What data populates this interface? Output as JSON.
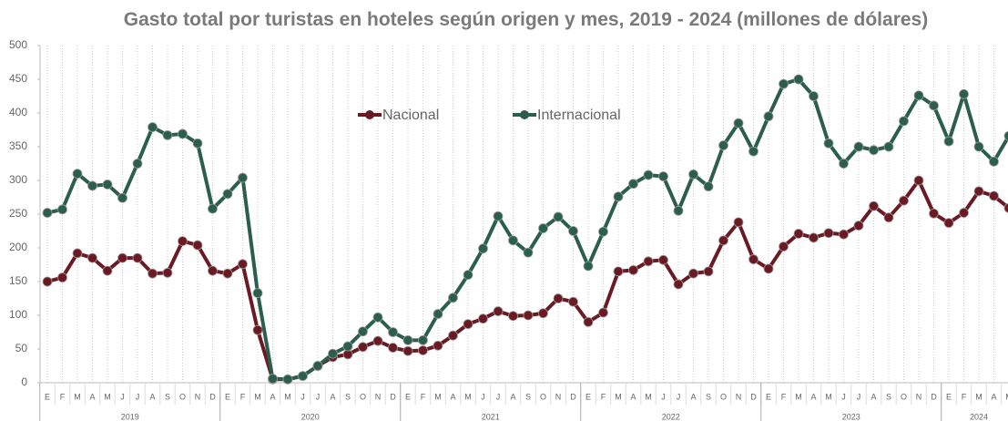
{
  "chart_data": {
    "type": "line",
    "title": "Gasto total por turistas en hoteles según origen y mes, 2019 - 2024 (millones de dólares)",
    "categories": [
      "E",
      "F",
      "M",
      "A",
      "M",
      "J",
      "J",
      "A",
      "S",
      "O",
      "N",
      "D",
      "E",
      "F",
      "M",
      "A",
      "M",
      "J",
      "J",
      "A",
      "S",
      "O",
      "N",
      "D",
      "E",
      "F",
      "M",
      "A",
      "M",
      "J",
      "J",
      "A",
      "S",
      "O",
      "N",
      "D",
      "E",
      "F",
      "M",
      "A",
      "M",
      "J",
      "J",
      "A",
      "S",
      "O",
      "N",
      "D",
      "E",
      "F",
      "M",
      "A",
      "M",
      "J",
      "J",
      "A",
      "S",
      "O",
      "N",
      "D",
      "E",
      "F",
      "M",
      "A",
      "M"
    ],
    "years": [
      "2019",
      "2020",
      "2021",
      "2022",
      "2023",
      "2024"
    ],
    "series": [
      {
        "name": "Nacional",
        "color": "#6b1a24",
        "values": [
          150,
          156,
          192,
          185,
          166,
          185,
          185,
          162,
          163,
          210,
          204,
          166,
          162,
          176,
          78,
          5,
          5,
          10,
          25,
          38,
          42,
          53,
          62,
          52,
          47,
          48,
          55,
          70,
          87,
          95,
          106,
          99,
          100,
          103,
          125,
          120,
          90,
          104,
          165,
          167,
          180,
          182,
          146,
          162,
          165,
          211,
          238,
          183,
          169,
          202,
          221,
          215,
          222,
          220,
          233,
          262,
          245,
          270,
          300,
          251,
          237,
          252,
          284,
          277,
          259
        ]
      },
      {
        "name": "Internacional",
        "color": "#2b5e4c",
        "values": [
          252,
          257,
          310,
          292,
          294,
          274,
          325,
          379,
          367,
          369,
          355,
          258,
          280,
          304,
          133,
          6,
          5,
          10,
          25,
          43,
          54,
          76,
          97,
          75,
          63,
          63,
          102,
          126,
          160,
          199,
          247,
          211,
          193,
          229,
          246,
          225,
          173,
          224,
          276,
          295,
          308,
          306,
          255,
          309,
          291,
          352,
          385,
          343,
          395,
          443,
          450,
          425,
          355,
          325,
          350,
          345,
          350,
          388,
          426,
          411,
          358,
          428,
          350,
          328,
          366
        ]
      }
    ],
    "ylim": [
      0,
      500
    ],
    "yticks": [
      0,
      50,
      100,
      150,
      200,
      250,
      300,
      350,
      400,
      450,
      500
    ],
    "grid": true
  }
}
